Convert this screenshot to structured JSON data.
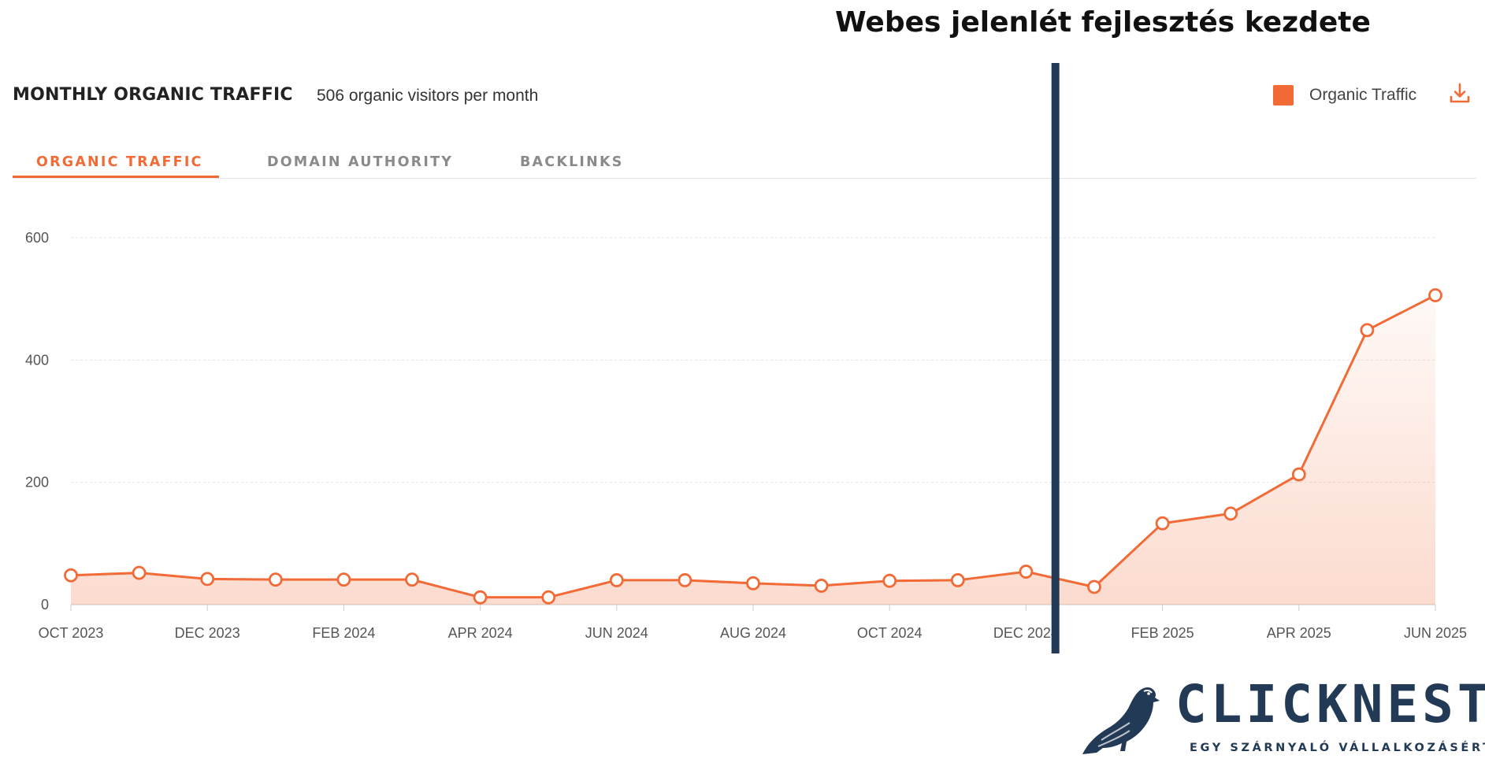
{
  "annotation": {
    "title": "Webes jelenlét fejlesztés kezdete"
  },
  "widget": {
    "title": "MONTHLY ORGANIC TRAFFIC",
    "subtitle": "506 organic visitors per month",
    "legend_label": "Organic Traffic",
    "download_icon": "download-icon"
  },
  "tabs": [
    {
      "label": "ORGANIC TRAFFIC",
      "active": true
    },
    {
      "label": "DOMAIN AUTHORITY",
      "active": false
    },
    {
      "label": "BACKLINKS",
      "active": false
    }
  ],
  "logo": {
    "name": "CLICKNEST",
    "tagline": "EGY SZÁRNYALÓ VÁLLALKOZÁSÉRT",
    "icon": "falcon-logo-icon"
  },
  "colors": {
    "series": "#f26a36",
    "marker_line": "#223a55",
    "brand": "#223a55"
  },
  "chart_data": {
    "type": "area",
    "title": "",
    "xlabel": "",
    "ylabel": "",
    "x": [
      "2023-10",
      "2023-11",
      "2023-12",
      "2024-01",
      "2024-02",
      "2024-03",
      "2024-04",
      "2024-05",
      "2024-06",
      "2024-07",
      "2024-08",
      "2024-09",
      "2024-10",
      "2024-11",
      "2024-12",
      "2025-01",
      "2025-02",
      "2025-03",
      "2025-04",
      "2025-05",
      "2025-06"
    ],
    "x_tick_labels": [
      "OCT 2023",
      "DEC 2023",
      "FEB 2024",
      "APR 2024",
      "JUN 2024",
      "AUG 2024",
      "OCT 2024",
      "DEC 2024",
      "FEB 2025",
      "APR 2025",
      "JUN 2025"
    ],
    "series": [
      {
        "name": "Organic Traffic",
        "values": [
          48,
          52,
          42,
          41,
          41,
          41,
          12,
          12,
          40,
          40,
          35,
          31,
          39,
          40,
          54,
          29,
          133,
          149,
          213,
          449,
          506
        ]
      }
    ],
    "ylim": [
      0,
      600
    ],
    "y_ticks": [
      0,
      200,
      400,
      600
    ],
    "grid": true,
    "legend": "top-right",
    "marker_x": "2025-01"
  }
}
